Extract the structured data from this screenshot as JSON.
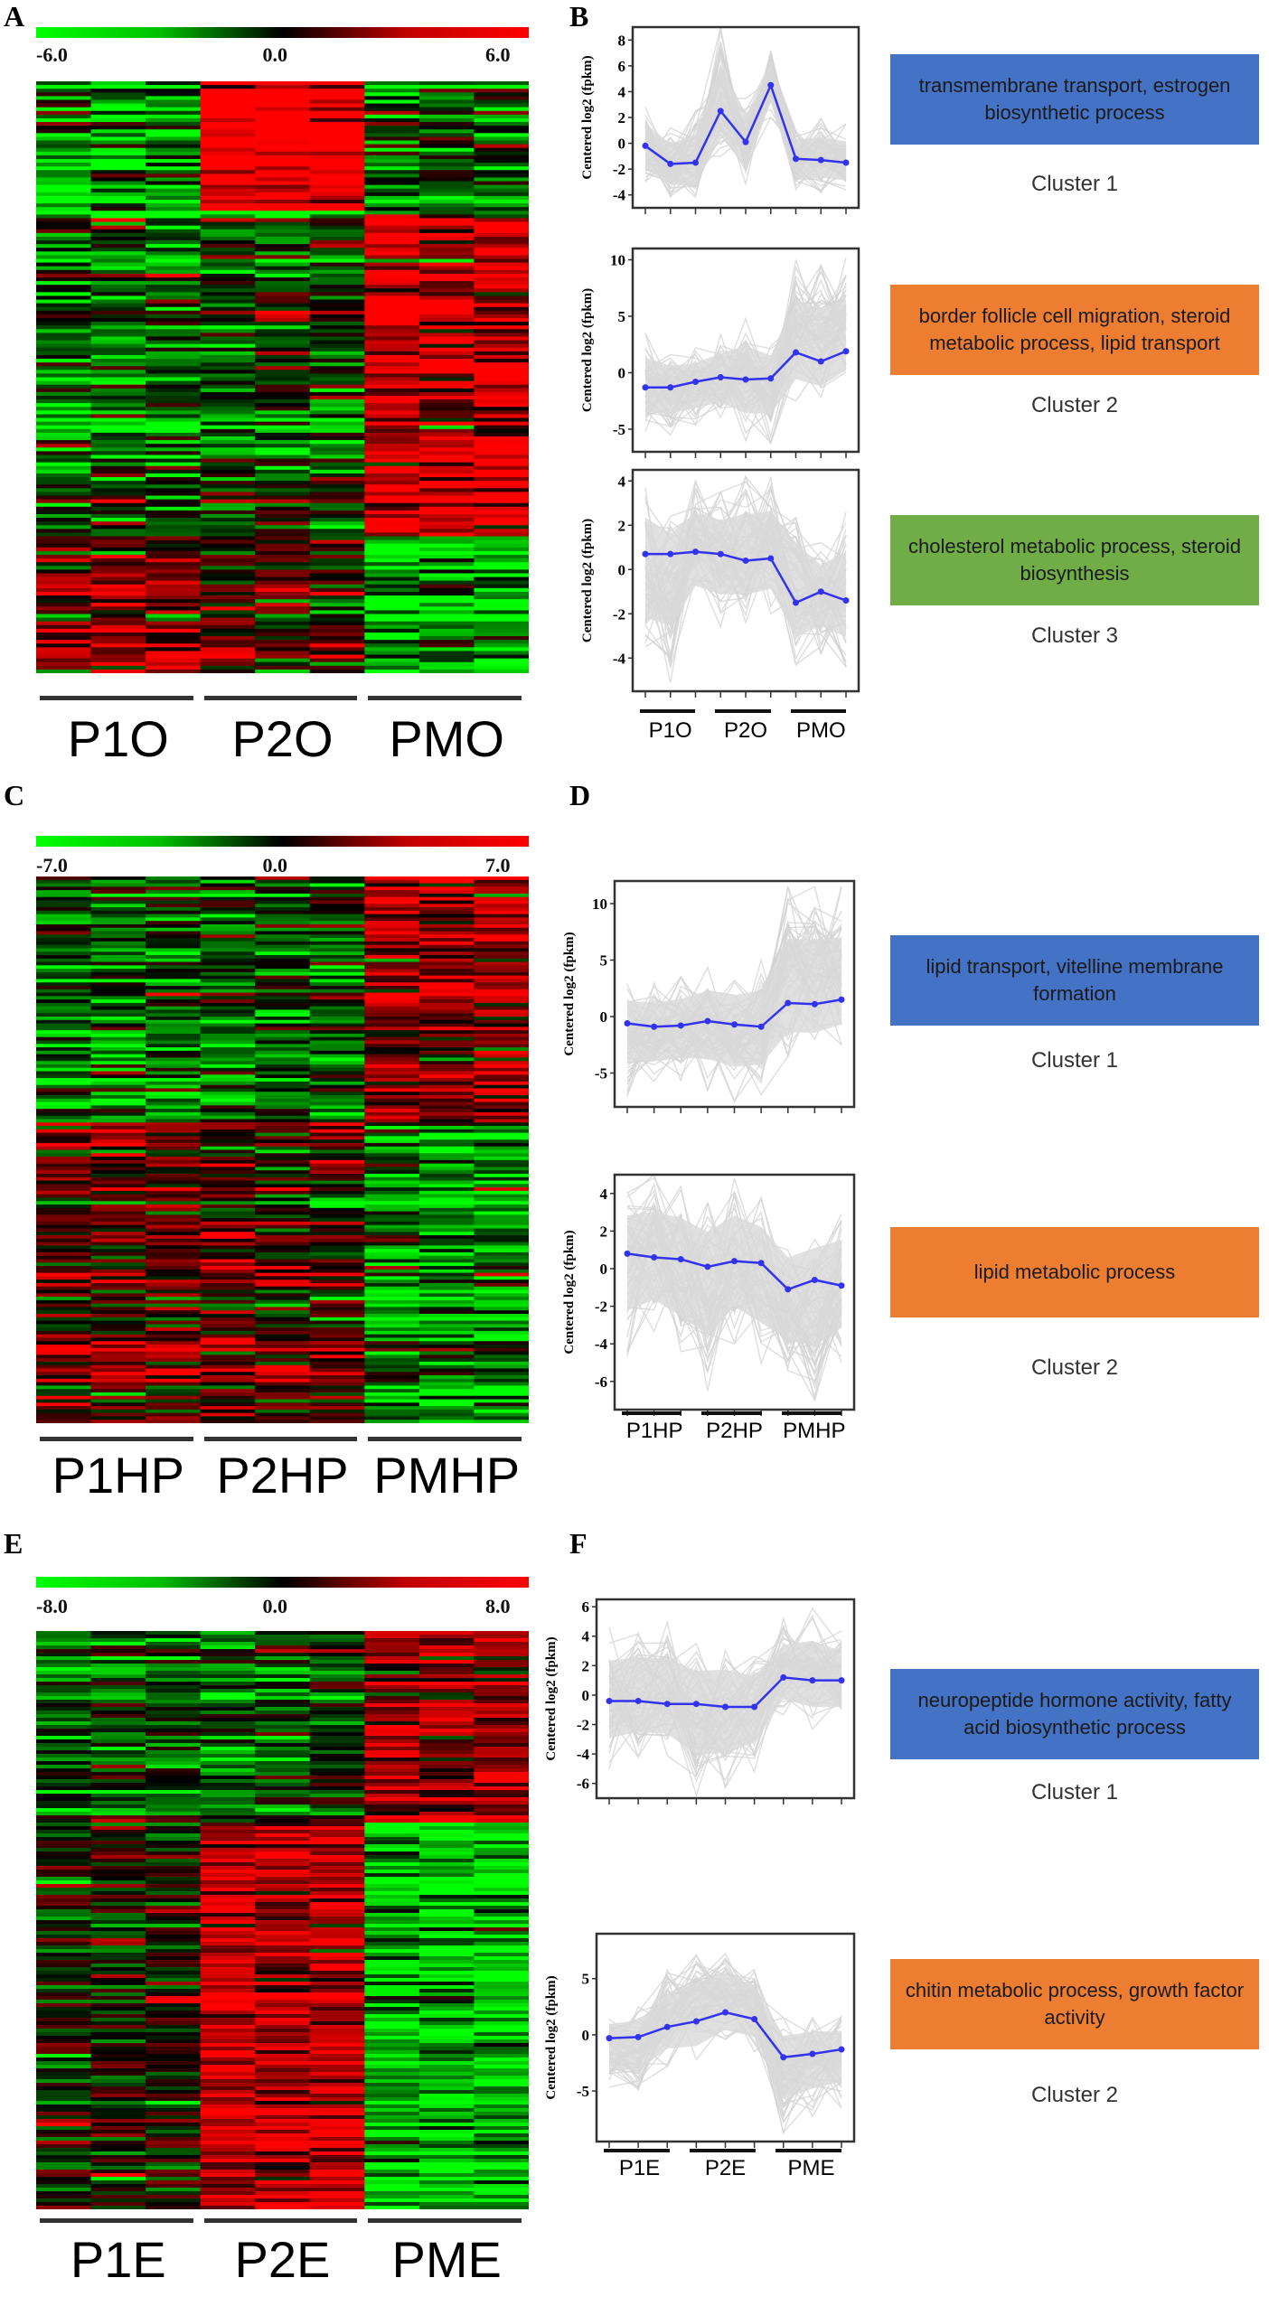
{
  "panels": {
    "A": {
      "letter": "A"
    },
    "B": {
      "letter": "B"
    },
    "C": {
      "letter": "C"
    },
    "D": {
      "letter": "D"
    },
    "E": {
      "letter": "E"
    },
    "F": {
      "letter": "F"
    }
  },
  "colors": {
    "blue_box": "#4472c4",
    "orange_box": "#ed7d31",
    "green_box": "#70ad47",
    "profile_line": "#3333ee",
    "background_lines": "#d3d3d3"
  },
  "chart_data": [
    {
      "type": "heatmap",
      "panel": "A",
      "colorbar": {
        "min_label": "-6.0",
        "mid_label": "0.0",
        "max_label": "6.0",
        "min": -6,
        "max": 6
      },
      "groups": [
        "P1O",
        "P2O",
        "PMO"
      ],
      "replicates_per_group": 3,
      "blocks": [
        {
          "rows_fraction": 0.22,
          "group_means": [
            -1.5,
            3.5,
            -1.0
          ]
        },
        {
          "rows_fraction": 0.55,
          "group_means": [
            -1.2,
            -0.8,
            2.0
          ]
        },
        {
          "rows_fraction": 0.23,
          "group_means": [
            1.2,
            0.6,
            -1.8
          ]
        }
      ]
    },
    {
      "type": "line",
      "panel": "B",
      "ylabel": "Centered log2 (fpkm)",
      "groups": [
        "P1O",
        "P2O",
        "PMO"
      ],
      "x": [
        1,
        2,
        3,
        4,
        5,
        6,
        7,
        8,
        9
      ],
      "clusters": [
        {
          "name": "Cluster 1",
          "go_terms": "transmembrane transport, estrogen biosynthetic process",
          "box_color": "blue",
          "ylim": [
            -5,
            9
          ],
          "yticks": [
            "8",
            "6",
            "4",
            "2",
            "0",
            "-2",
            "-4"
          ],
          "ytick_values": [
            8,
            6,
            4,
            2,
            0,
            -2,
            -4
          ],
          "mean": [
            -0.2,
            -1.6,
            -1.5,
            2.5,
            0.1,
            4.5,
            -1.2,
            -1.3,
            -1.5
          ],
          "band_low": [
            -3.5,
            -4.5,
            -4.8,
            -1,
            -3.5,
            2,
            -4,
            -3.8,
            -4
          ],
          "band_high": [
            3,
            1.2,
            2.5,
            9,
            3.8,
            7.8,
            1.5,
            1.9,
            1.5
          ]
        },
        {
          "name": "Cluster 2",
          "go_terms": "border follicle cell migration, steroid metabolic process, lipid transport",
          "box_color": "orange",
          "ylim": [
            -7,
            11
          ],
          "yticks": [
            "10",
            "5",
            "0",
            "-5"
          ],
          "ytick_values": [
            10,
            5,
            0,
            -5
          ],
          "mean": [
            -1.3,
            -1.3,
            -0.8,
            -0.4,
            -0.6,
            -0.5,
            1.8,
            1.0,
            1.9
          ],
          "band_low": [
            -5.2,
            -5.5,
            -5,
            -4.5,
            -6,
            -6.2,
            -2.5,
            -3,
            -1.2
          ],
          "band_high": [
            3.5,
            2.2,
            2.2,
            3.5,
            4.8,
            3.2,
            10,
            9.5,
            10.2
          ]
        },
        {
          "name": "Cluster 3",
          "go_terms": "cholesterol metabolic process, steroid biosynthesis",
          "box_color": "green",
          "ylim": [
            -5.5,
            4.5
          ],
          "yticks": [
            "4",
            "2",
            "0",
            "-2",
            "-4"
          ],
          "ytick_values": [
            4,
            2,
            0,
            -2,
            -4
          ],
          "mean": [
            0.7,
            0.7,
            0.8,
            0.7,
            0.4,
            0.5,
            -1.5,
            -1.0,
            -1.4
          ],
          "band_low": [
            -4.5,
            -5.2,
            -2,
            -2.6,
            -2.4,
            -2,
            -4.3,
            -3.8,
            -4.4
          ],
          "band_high": [
            3.7,
            2.4,
            4,
            3.5,
            4.2,
            4.4,
            3.4,
            1.2,
            2.6
          ]
        }
      ]
    },
    {
      "type": "heatmap",
      "panel": "C",
      "colorbar": {
        "min_label": "-7.0",
        "mid_label": "0.0",
        "max_label": "7.0",
        "min": -7,
        "max": 7
      },
      "groups": [
        "P1HP",
        "P2HP",
        "PMHP"
      ],
      "replicates_per_group": 3,
      "blocks": [
        {
          "rows_fraction": 0.45,
          "group_means": [
            -1.2,
            -1.0,
            1.8
          ]
        },
        {
          "rows_fraction": 0.55,
          "group_means": [
            0.8,
            0.4,
            -1.8
          ]
        }
      ]
    },
    {
      "type": "line",
      "panel": "D",
      "ylabel": "Centered log2 (fpkm)",
      "groups": [
        "P1HP",
        "P2HP",
        "PMHP"
      ],
      "x": [
        1,
        2,
        3,
        4,
        5,
        6,
        7,
        8,
        9
      ],
      "clusters": [
        {
          "name": "Cluster 1",
          "go_terms": "lipid transport, vitelline membrane formation",
          "box_color": "blue",
          "ylim": [
            -8,
            12
          ],
          "yticks": [
            "10",
            "5",
            "0",
            "-5"
          ],
          "ytick_values": [
            10,
            5,
            0,
            -5
          ],
          "mean": [
            -0.6,
            -0.9,
            -0.8,
            -0.4,
            -0.7,
            -0.9,
            1.2,
            1.1,
            1.5
          ],
          "band_low": [
            -7,
            -6.5,
            -6,
            -6.5,
            -7.5,
            -7,
            -3.5,
            -3.5,
            -2.5
          ],
          "band_high": [
            3,
            3,
            3.5,
            4.5,
            4,
            5,
            11.5,
            11.5,
            11.5
          ]
        },
        {
          "name": "Cluster 2",
          "go_terms": "lipid metabolic process",
          "box_color": "orange",
          "ylim": [
            -7.5,
            5
          ],
          "yticks": [
            "4",
            "2",
            "0",
            "-2",
            "-4",
            "-6"
          ],
          "ytick_values": [
            4,
            2,
            0,
            -2,
            -4,
            -6
          ],
          "mean": [
            0.8,
            0.6,
            0.5,
            0.1,
            0.4,
            0.3,
            -1.1,
            -0.6,
            -0.9
          ],
          "band_low": [
            -4.7,
            -3.5,
            -5,
            -6.5,
            -4,
            -5.5,
            -6,
            -7,
            -5
          ],
          "band_high": [
            4.5,
            5,
            4.5,
            3.5,
            4.8,
            3.8,
            2,
            2.5,
            3.5
          ]
        }
      ]
    },
    {
      "type": "heatmap",
      "panel": "E",
      "colorbar": {
        "min_label": "-8.0",
        "mid_label": "0.0",
        "max_label": "8.0",
        "min": -8,
        "max": 8
      },
      "groups": [
        "P1E",
        "P2E",
        "PME"
      ],
      "replicates_per_group": 3,
      "blocks": [
        {
          "rows_fraction": 0.33,
          "group_means": [
            -1.0,
            -1.0,
            2.0
          ]
        },
        {
          "rows_fraction": 0.67,
          "group_means": [
            -0.2,
            2.5,
            -2.8
          ]
        }
      ]
    },
    {
      "type": "line",
      "panel": "F",
      "ylabel": "Centered log2 (fpkm)",
      "groups": [
        "P1E",
        "P2E",
        "PME"
      ],
      "x": [
        1,
        2,
        3,
        4,
        5,
        6,
        7,
        8,
        9
      ],
      "clusters": [
        {
          "name": "Cluster 1",
          "go_terms": "neuropeptide hormone activity, fatty acid biosynthetic process",
          "box_color": "blue",
          "ylim": [
            -7,
            6.5
          ],
          "yticks": [
            "6",
            "4",
            "2",
            "0",
            "-2",
            "-4",
            "-6"
          ],
          "ytick_values": [
            6,
            4,
            2,
            0,
            -2,
            -4,
            -6
          ],
          "mean": [
            -0.4,
            -0.4,
            -0.6,
            -0.6,
            -0.8,
            -0.8,
            1.2,
            1.0,
            1.0
          ],
          "band_low": [
            -5,
            -4.2,
            -4.3,
            -6.8,
            -6.5,
            -5.2,
            -1.5,
            -2.3,
            -2.3
          ],
          "band_high": [
            4.6,
            5,
            5,
            3.5,
            3.8,
            3,
            5.2,
            5.9,
            4.6
          ]
        },
        {
          "name": "Cluster 2",
          "go_terms": "chitin metabolic process, growth factor activity",
          "box_color": "orange",
          "ylim": [
            -9.5,
            9
          ],
          "yticks": [
            "5",
            "0",
            "-5"
          ],
          "ytick_values": [
            5,
            0,
            -5
          ],
          "mean": [
            -0.3,
            -0.2,
            0.7,
            1.2,
            2.0,
            1.4,
            -2.0,
            -1.7,
            -1.3
          ],
          "band_low": [
            -5.3,
            -5.6,
            -2.8,
            -2.8,
            -0.8,
            -1.5,
            -8.7,
            -7.3,
            -6.5
          ],
          "band_high": [
            2,
            2.5,
            5.8,
            7.5,
            8.3,
            6.8,
            1.5,
            1.9,
            1.7
          ]
        }
      ]
    }
  ]
}
